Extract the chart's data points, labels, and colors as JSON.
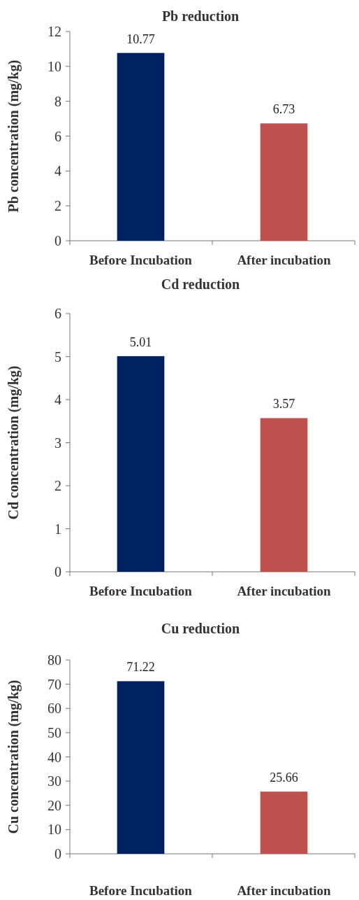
{
  "chart_data": [
    {
      "type": "bar",
      "title": "Pb reduction",
      "ylabel": "Pb concentration (mg/kg)",
      "categories": [
        "Before Incubation",
        "After incubation"
      ],
      "values": [
        10.77,
        6.73
      ],
      "colors": [
        "#002060",
        "#c0504d"
      ],
      "ylim": [
        0,
        12
      ],
      "yticks": [
        0,
        2,
        4,
        6,
        8,
        10,
        12
      ],
      "data_labels": true
    },
    {
      "type": "bar",
      "title": "Cd reduction",
      "ylabel": "Cd concentration (mg/kg)",
      "categories": [
        "Before Incubation",
        "After incubation"
      ],
      "values": [
        5.01,
        3.57
      ],
      "colors": [
        "#002060",
        "#c0504d"
      ],
      "ylim": [
        0,
        6
      ],
      "yticks": [
        0,
        1,
        2,
        3,
        4,
        5,
        6
      ],
      "data_labels": true
    },
    {
      "type": "bar",
      "title": "Cu reduction",
      "ylabel": "Cu concentration (mg/kg)",
      "categories": [
        "Before Incubation",
        "After incubation"
      ],
      "values": [
        71.22,
        25.66
      ],
      "colors": [
        "#002060",
        "#c0504d"
      ],
      "ylim": [
        0,
        80
      ],
      "yticks": [
        0,
        10,
        20,
        30,
        40,
        50,
        60,
        70,
        80
      ],
      "data_labels": true
    }
  ]
}
